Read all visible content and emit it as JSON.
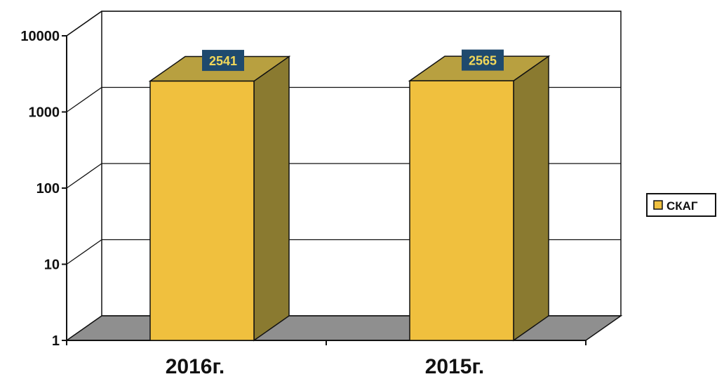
{
  "chart_data": {
    "type": "bar",
    "categories": [
      "2016г.",
      "2015г."
    ],
    "series": [
      {
        "name": "СКАГ",
        "values": [
          2541,
          2565
        ]
      }
    ],
    "y_scale": "log",
    "ylim": [
      1,
      10000
    ],
    "y_ticks": [
      "1",
      "10",
      "100",
      "1000",
      "10000"
    ],
    "grid": true,
    "legend_position": "right",
    "colors": {
      "bar_front": "#f0c03e",
      "bar_side": "#8a7a30",
      "bar_top": "#b8a040",
      "floor": "#8f8f8f",
      "label_bg": "#1f4a6e",
      "label_text": "#f2d85a"
    }
  }
}
